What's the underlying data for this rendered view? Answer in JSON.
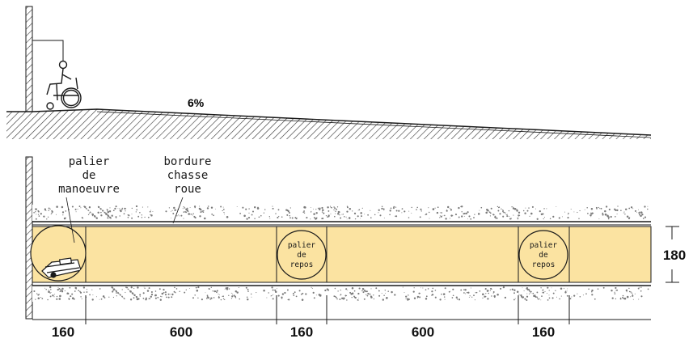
{
  "slope_label": "6%",
  "labels": {
    "maneuver": [
      "palier",
      "de",
      "manoeuvre"
    ],
    "curb": [
      "bordure",
      "chasse",
      "roue"
    ],
    "rest_landing": [
      "palier",
      "de",
      "repos"
    ]
  },
  "dimensions": {
    "widths": [
      "160",
      "600",
      "160",
      "600",
      "160"
    ],
    "height": "180"
  },
  "colors": {
    "ramp_fill": "#fbe3a1",
    "line": "#1a1a1a",
    "gravel_dots": "#7a7a7a"
  }
}
